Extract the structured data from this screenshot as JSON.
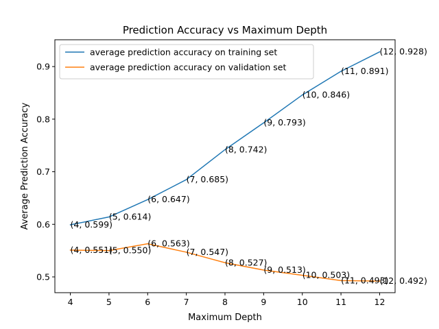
{
  "chart_data": {
    "type": "line",
    "title": "Prediction Accuracy vs Maximum Depth",
    "xlabel": "Maximum Depth",
    "ylabel": "Average Prediction Accuracy",
    "x": [
      4,
      5,
      6,
      7,
      8,
      9,
      10,
      11,
      12
    ],
    "xlim": [
      3.6,
      12.4
    ],
    "ylim": [
      0.47,
      0.951
    ],
    "xticks": [
      4,
      5,
      6,
      7,
      8,
      9,
      10,
      11,
      12
    ],
    "xtick_labels": [
      "4",
      "5",
      "6",
      "7",
      "8",
      "9",
      "10",
      "11",
      "12"
    ],
    "yticks": [
      0.5,
      0.6,
      0.7,
      0.8,
      0.9
    ],
    "ytick_labels": [
      "0.5",
      "0.6",
      "0.7",
      "0.8",
      "0.9"
    ],
    "grid": false,
    "legend_position": "top-left",
    "series": [
      {
        "name": "average prediction accuracy on training set",
        "color": "#1f77b4",
        "values": [
          0.599,
          0.614,
          0.647,
          0.685,
          0.742,
          0.793,
          0.846,
          0.891,
          0.928
        ],
        "annotations": [
          "(4, 0.599)",
          "(5, 0.614)",
          "(6, 0.647)",
          "(7, 0.685)",
          "(8, 0.742)",
          "(9, 0.793)",
          "(10, 0.846)",
          "(11, 0.891)",
          "(12, 0.928)"
        ]
      },
      {
        "name": "average prediction accuracy on validation set",
        "color": "#ff7f0e",
        "values": [
          0.551,
          0.55,
          0.563,
          0.547,
          0.527,
          0.513,
          0.503,
          0.493,
          0.492
        ],
        "annotations": [
          "(4, 0.551)",
          "(5, 0.550)",
          "(6, 0.563)",
          "(7, 0.547)",
          "(8, 0.527)",
          "(9, 0.513)",
          "(10, 0.503)",
          "(11, 0.493)",
          "(12, 0.492)"
        ]
      }
    ]
  }
}
